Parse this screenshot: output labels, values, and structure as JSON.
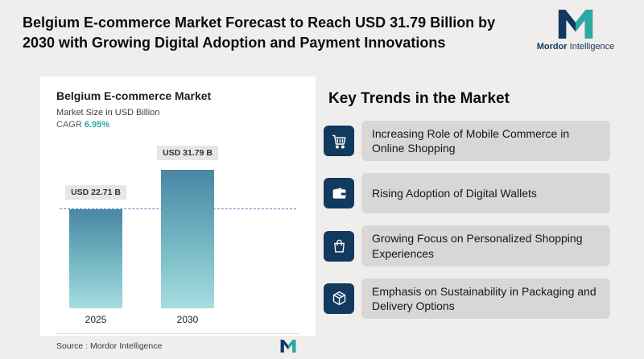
{
  "header": {
    "title": "Belgium E-commerce Market Forecast to Reach USD 31.79 Billion by 2030 with Growing Digital Adoption and Payment Innovations"
  },
  "logo": {
    "brand": "Mordor",
    "brand2": "Intelligence"
  },
  "chart_card": {
    "title": "Belgium E-commerce Market",
    "subtitle": "Market Size in USD Billion",
    "cagr_label": "CAGR",
    "cagr_value": "6.95%",
    "source": "Source : Mordor Intelligence"
  },
  "chart_data": {
    "type": "bar",
    "title": "Belgium E-commerce Market",
    "ylabel": "Market Size in USD Billion",
    "categories": [
      "2025",
      "2030"
    ],
    "values": [
      22.71,
      31.79
    ],
    "value_labels": [
      "USD 22.71 B",
      "USD 31.79 B"
    ],
    "ylim": [
      0,
      31.79
    ],
    "grid": false,
    "annotations": [
      "dashed reference line at 2025 value"
    ]
  },
  "trends": {
    "heading": "Key Trends in the Market",
    "items": [
      {
        "icon": "shopping-cart-icon",
        "text": "Increasing Role of Mobile Commerce in Online Shopping"
      },
      {
        "icon": "wallet-icon",
        "text": "Rising Adoption of Digital Wallets"
      },
      {
        "icon": "shopping-bag-icon",
        "text": "Growing Focus on Personalized Shopping Experiences"
      },
      {
        "icon": "package-icon",
        "text": "Emphasis on Sustainability in Packaging and Delivery Options"
      }
    ]
  },
  "colors": {
    "page_bg": "#f0eeec",
    "accent_teal": "#2aa9a5",
    "navy": "#12395e",
    "bar_top": "#4a86a5",
    "bar_bottom": "#a6dde1",
    "dashed_line": "#4d82c4",
    "trend_row_bg": "#d8d7d6"
  }
}
